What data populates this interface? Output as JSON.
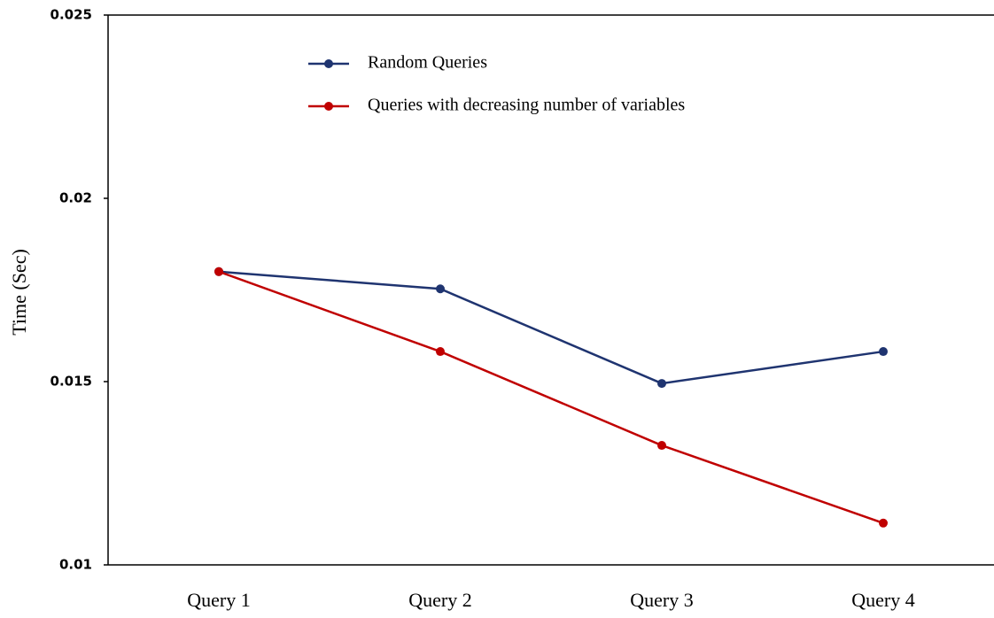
{
  "chart_data": {
    "type": "line",
    "y_label": "Time (Sec)",
    "categories": [
      "Query 1",
      "Query 2",
      "Query 3",
      "Query 4"
    ],
    "series": [
      {
        "name": "Random Queries",
        "color": "#1f3470",
        "values": [
          0.018,
          0.01753,
          0.01495,
          0.01582
        ]
      },
      {
        "name": "Queries with decreasing number of variables",
        "color": "#c00000",
        "values": [
          0.018,
          0.01582,
          0.01326,
          0.01114
        ]
      }
    ],
    "ylim": [
      0.01,
      0.025
    ],
    "yticks": [
      0.01,
      0.015,
      0.02,
      0.025
    ]
  }
}
